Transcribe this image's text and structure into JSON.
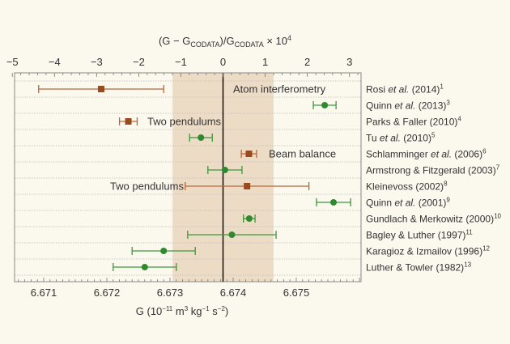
{
  "chart_data": {
    "type": "scatter",
    "subtype": "error-bar",
    "top_axis": {
      "label_parts": [
        "(G − G",
        "CODATA",
        ")/G",
        "CODATA",
        " × 10",
        "4"
      ],
      "range": [
        -5,
        3.2
      ],
      "ticks": [
        -5,
        -4,
        -3,
        -2,
        -1,
        0,
        1,
        2,
        3
      ],
      "tick_labels": [
        "−5",
        "−4",
        "−3",
        "−2",
        "−1",
        "0",
        "1",
        "2",
        "3"
      ]
    },
    "bottom_axis": {
      "label_parts": [
        "G (10",
        "−11",
        " m",
        "3",
        " kg",
        "−1",
        " s",
        "−2",
        ")"
      ],
      "range": [
        6.6705,
        6.676
      ],
      "ticks": [
        6.671,
        6.672,
        6.673,
        6.674,
        6.675
      ],
      "tick_labels": [
        "6.671",
        "6.672",
        "6.673",
        "6.674",
        "6.675"
      ]
    },
    "reference": {
      "codata_value": 6.67384,
      "codata_uncertainty": 0.0008
    },
    "grid": "horizontal-dotted",
    "colors": {
      "atom_pendulum_balance": "#9a4a1c",
      "other": "#2f8a2f",
      "band": "#ecdcc6",
      "background": "#fbf8ee"
    },
    "annotations": [
      {
        "text": "Atom interferometry",
        "row": 0
      },
      {
        "text": "Two pendulums",
        "row": 2
      },
      {
        "text": "Beam balance",
        "row": 4
      },
      {
        "text": "Two pendulums",
        "row": 6
      }
    ],
    "series": [
      {
        "pre": "Rosi ",
        "ital": "et al.",
        "post": " (2014)",
        "ref": "1",
        "G": 6.67191,
        "err": 0.00099,
        "marker": "square"
      },
      {
        "pre": "Quinn ",
        "ital": "et al.",
        "post": " (2013)",
        "ref": "3",
        "G": 6.67545,
        "err": 0.00018,
        "marker": "circle"
      },
      {
        "pre": "Parks & Faller (2010)",
        "ital": "",
        "post": "",
        "ref": "4",
        "G": 6.67234,
        "err": 0.00014,
        "marker": "square"
      },
      {
        "pre": "Tu ",
        "ital": "et al.",
        "post": " (2010)",
        "ref": "5",
        "G": 6.67349,
        "err": 0.00018,
        "marker": "circle"
      },
      {
        "pre": "Schlamminger ",
        "ital": "et al.",
        "post": " (2006)",
        "ref": "6",
        "G": 6.67425,
        "err": 0.00012,
        "marker": "square"
      },
      {
        "pre": "Armstrong & Fitzgerald (2003)",
        "ital": "",
        "post": "",
        "ref": "7",
        "G": 6.67387,
        "err": 0.00027,
        "marker": "circle"
      },
      {
        "pre": "Kleinevoss (2002)",
        "ital": "",
        "post": "",
        "ref": "8",
        "G": 6.67422,
        "err": 0.00098,
        "marker": "square"
      },
      {
        "pre": "Quinn ",
        "ital": "et al.",
        "post": " (2001)",
        "ref": "9",
        "G": 6.67559,
        "err": 0.00027,
        "marker": "circle"
      },
      {
        "pre": "Gundlach & Merkowitz (2000)",
        "ital": "",
        "post": "",
        "ref": "10",
        "G": 6.674255,
        "err": 9.2e-05,
        "marker": "circle"
      },
      {
        "pre": "Bagley & Luther (1997)",
        "ital": "",
        "post": "",
        "ref": "11",
        "G": 6.67398,
        "err": 0.0007,
        "marker": "circle"
      },
      {
        "pre": "Karagioz & Izmailov (1996)",
        "ital": "",
        "post": "",
        "ref": "12",
        "G": 6.6729,
        "err": 0.0005,
        "marker": "circle"
      },
      {
        "pre": "Luther & Towler (1982)",
        "ital": "",
        "post": "",
        "ref": "13",
        "G": 6.6726,
        "err": 0.0005,
        "marker": "circle"
      }
    ]
  }
}
